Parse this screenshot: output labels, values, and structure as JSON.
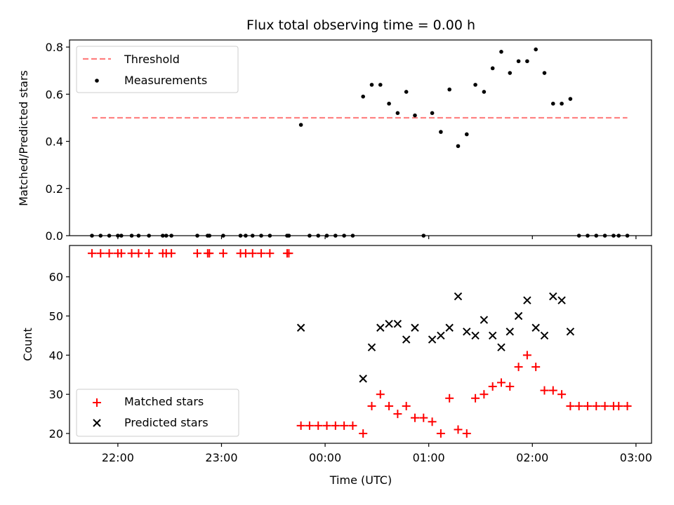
{
  "chart_data": [
    {
      "type": "scatter",
      "title": "Flux total observing time = 0.00 h",
      "xlabel": "",
      "ylabel": "Matched/Predicted stars",
      "xlim": [
        "21:32",
        "03:09"
      ],
      "ylim": [
        0,
        0.83
      ],
      "yticks": [
        "0.0",
        "0.2",
        "0.4",
        "0.6",
        "0.8"
      ],
      "grid": false,
      "legend_position": "top-left",
      "threshold": {
        "name": "Threshold",
        "value": 0.5,
        "x_start": "21:45",
        "x_end": "02:55",
        "color": "#ff7f7f",
        "style": "dashed"
      },
      "series": [
        {
          "name": "Measurements",
          "marker": "dot",
          "color": "#000000",
          "points": [
            [
              "21:45",
              0
            ],
            [
              "21:50",
              0
            ],
            [
              "21:55",
              0
            ],
            [
              "22:00",
              0
            ],
            [
              "22:02",
              0
            ],
            [
              "22:08",
              0
            ],
            [
              "22:12",
              0
            ],
            [
              "22:18",
              0
            ],
            [
              "22:26",
              0
            ],
            [
              "22:28",
              0
            ],
            [
              "22:31",
              0
            ],
            [
              "22:46",
              0
            ],
            [
              "22:52",
              0
            ],
            [
              "22:53",
              0
            ],
            [
              "23:01",
              0
            ],
            [
              "23:11",
              0
            ],
            [
              "23:14",
              0
            ],
            [
              "23:18",
              0
            ],
            [
              "23:23",
              0
            ],
            [
              "23:28",
              0
            ],
            [
              "23:38",
              0
            ],
            [
              "23:39",
              0
            ],
            [
              "23:46",
              0.47
            ],
            [
              "23:51",
              0
            ],
            [
              "23:56",
              0
            ],
            [
              "00:01",
              0
            ],
            [
              "00:06",
              0
            ],
            [
              "00:11",
              0
            ],
            [
              "00:16",
              0
            ],
            [
              "00:22",
              0.59
            ],
            [
              "00:27",
              0.64
            ],
            [
              "00:32",
              0.64
            ],
            [
              "00:37",
              0.56
            ],
            [
              "00:42",
              0.52
            ],
            [
              "00:47",
              0.61
            ],
            [
              "00:52",
              0.51
            ],
            [
              "00:57",
              0
            ],
            [
              "01:02",
              0.52
            ],
            [
              "01:07",
              0.44
            ],
            [
              "01:12",
              0.62
            ],
            [
              "01:17",
              0.38
            ],
            [
              "01:22",
              0.43
            ],
            [
              "01:27",
              0.64
            ],
            [
              "01:32",
              0.61
            ],
            [
              "01:37",
              0.71
            ],
            [
              "01:42",
              0.78
            ],
            [
              "01:47",
              0.69
            ],
            [
              "01:52",
              0.74
            ],
            [
              "01:57",
              0.74
            ],
            [
              "02:02",
              0.79
            ],
            [
              "02:07",
              0.69
            ],
            [
              "02:12",
              0.56
            ],
            [
              "02:17",
              0.56
            ],
            [
              "02:22",
              0.58
            ],
            [
              "02:27",
              0
            ],
            [
              "02:32",
              0
            ],
            [
              "02:37",
              0
            ],
            [
              "02:42",
              0
            ],
            [
              "02:47",
              0
            ],
            [
              "02:50",
              0
            ],
            [
              "02:55",
              0
            ]
          ]
        }
      ]
    },
    {
      "type": "scatter",
      "title": "",
      "xlabel": "Time (UTC)",
      "ylabel": "Count",
      "xlim": [
        "21:32",
        "03:09"
      ],
      "ylim": [
        17.5,
        68
      ],
      "xticks": [
        "22:00",
        "23:00",
        "00:00",
        "01:00",
        "02:00",
        "03:00"
      ],
      "yticks": [
        "20",
        "30",
        "40",
        "50",
        "60"
      ],
      "grid": false,
      "legend_position": "bottom-left",
      "series": [
        {
          "name": "Matched stars",
          "marker": "plus",
          "color": "#ff0000",
          "points": [
            [
              "21:45",
              66
            ],
            [
              "21:50",
              66
            ],
            [
              "21:55",
              66
            ],
            [
              "22:00",
              66
            ],
            [
              "22:02",
              66
            ],
            [
              "22:08",
              66
            ],
            [
              "22:12",
              66
            ],
            [
              "22:18",
              66
            ],
            [
              "22:26",
              66
            ],
            [
              "22:28",
              66
            ],
            [
              "22:31",
              66
            ],
            [
              "22:46",
              66
            ],
            [
              "22:52",
              66
            ],
            [
              "22:53",
              66
            ],
            [
              "23:01",
              66
            ],
            [
              "23:11",
              66
            ],
            [
              "23:14",
              66
            ],
            [
              "23:18",
              66
            ],
            [
              "23:23",
              66
            ],
            [
              "23:28",
              66
            ],
            [
              "23:38",
              66
            ],
            [
              "23:39",
              66
            ],
            [
              "23:46",
              22
            ],
            [
              "23:51",
              22
            ],
            [
              "23:56",
              22
            ],
            [
              "00:01",
              22
            ],
            [
              "00:06",
              22
            ],
            [
              "00:11",
              22
            ],
            [
              "00:16",
              22
            ],
            [
              "00:22",
              20
            ],
            [
              "00:27",
              27
            ],
            [
              "00:32",
              30
            ],
            [
              "00:37",
              27
            ],
            [
              "00:42",
              25
            ],
            [
              "00:47",
              27
            ],
            [
              "00:52",
              24
            ],
            [
              "00:57",
              24
            ],
            [
              "01:02",
              23
            ],
            [
              "01:07",
              20
            ],
            [
              "01:12",
              29
            ],
            [
              "01:17",
              21
            ],
            [
              "01:22",
              20
            ],
            [
              "01:27",
              29
            ],
            [
              "01:32",
              30
            ],
            [
              "01:37",
              32
            ],
            [
              "01:42",
              33
            ],
            [
              "01:47",
              32
            ],
            [
              "01:52",
              37
            ],
            [
              "01:57",
              40
            ],
            [
              "02:02",
              37
            ],
            [
              "02:07",
              31
            ],
            [
              "02:12",
              31
            ],
            [
              "02:17",
              30
            ],
            [
              "02:22",
              27
            ],
            [
              "02:27",
              27
            ],
            [
              "02:32",
              27
            ],
            [
              "02:37",
              27
            ],
            [
              "02:42",
              27
            ],
            [
              "02:47",
              27
            ],
            [
              "02:50",
              27
            ],
            [
              "02:55",
              27
            ]
          ]
        },
        {
          "name": "Predicted stars",
          "marker": "x",
          "color": "#000000",
          "points": [
            [
              "23:46",
              47
            ],
            [
              "00:22",
              34
            ],
            [
              "00:27",
              42
            ],
            [
              "00:32",
              47
            ],
            [
              "00:37",
              48
            ],
            [
              "00:42",
              48
            ],
            [
              "00:47",
              44
            ],
            [
              "00:52",
              47
            ],
            [
              "01:02",
              44
            ],
            [
              "01:07",
              45
            ],
            [
              "01:12",
              47
            ],
            [
              "01:17",
              55
            ],
            [
              "01:22",
              46
            ],
            [
              "01:27",
              45
            ],
            [
              "01:32",
              49
            ],
            [
              "01:37",
              45
            ],
            [
              "01:42",
              42
            ],
            [
              "01:47",
              46
            ],
            [
              "01:52",
              50
            ],
            [
              "01:57",
              54
            ],
            [
              "02:02",
              47
            ],
            [
              "02:07",
              45
            ],
            [
              "02:12",
              55
            ],
            [
              "02:17",
              54
            ],
            [
              "02:22",
              46
            ]
          ]
        }
      ]
    }
  ]
}
